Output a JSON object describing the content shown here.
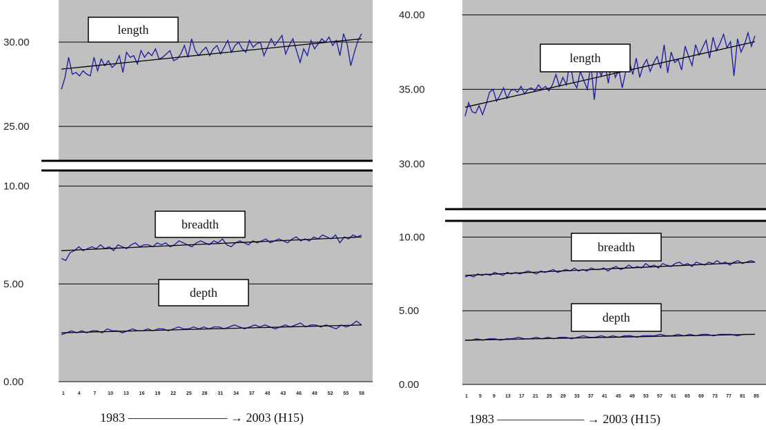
{
  "chart_data": [
    {
      "type": "line",
      "x_ticks": [
        "1",
        "4",
        "7",
        "10",
        "13",
        "16",
        "19",
        "22",
        "25",
        "28",
        "31",
        "34",
        "37",
        "40",
        "43",
        "46",
        "49",
        "52",
        "55",
        "58"
      ],
      "y_ticks": [
        "30.00",
        "25.00",
        "10.00",
        "5.00",
        "0.00"
      ],
      "axis_break": [
        12,
        23
      ],
      "caption": "1983 ———————— → 2003 (H15)",
      "series": [
        {
          "name": "length",
          "color": "#2020a0",
          "trendline": [
            28.4,
            30.2
          ],
          "values": [
            27.2,
            27.9,
            29.1,
            28.1,
            28.2,
            28.0,
            28.3,
            28.1,
            28.0,
            29.1,
            28.3,
            29.0,
            28.6,
            28.9,
            28.5,
            28.7,
            29.2,
            28.2,
            29.4,
            29.1,
            29.2,
            28.7,
            29.5,
            29.1,
            29.4,
            29.2,
            29.6,
            29.0,
            29.1,
            29.3,
            29.5,
            28.9,
            29.0,
            29.3,
            29.8,
            29.1,
            30.2,
            29.5,
            29.2,
            29.5,
            29.7,
            29.2,
            29.6,
            29.8,
            29.3,
            29.7,
            30.1,
            29.4,
            29.8,
            30.0,
            29.6,
            29.4,
            30.1,
            29.7,
            29.9,
            30.0,
            29.2,
            29.7,
            30.2,
            29.8,
            30.1,
            30.4,
            29.3,
            29.8,
            30.2,
            29.5,
            28.8,
            29.6,
            29.2,
            30.1,
            29.6,
            29.9,
            30.2,
            30.0,
            30.3,
            29.8,
            30.1,
            29.2,
            30.5,
            29.9,
            28.6,
            29.4,
            30.1,
            30.5
          ]
        },
        {
          "name": "breadth",
          "color": "#2020a0",
          "trendline": [
            6.7,
            7.4
          ],
          "values": [
            6.3,
            6.2,
            6.6,
            6.7,
            6.9,
            6.7,
            6.8,
            6.9,
            6.8,
            7.0,
            6.8,
            6.9,
            6.7,
            7.0,
            6.9,
            6.8,
            7.0,
            7.1,
            6.9,
            7.0,
            7.0,
            6.9,
            7.1,
            7.0,
            7.1,
            6.9,
            7.0,
            7.2,
            7.1,
            7.0,
            6.9,
            7.1,
            7.2,
            7.1,
            7.0,
            7.2,
            7.1,
            7.3,
            7.0,
            6.9,
            7.1,
            7.2,
            7.1,
            7.0,
            7.2,
            7.1,
            7.2,
            7.3,
            7.1,
            7.2,
            7.3,
            7.2,
            7.1,
            7.3,
            7.4,
            7.2,
            7.3,
            7.2,
            7.4,
            7.3,
            7.5,
            7.4,
            7.3,
            7.5,
            7.1,
            7.4,
            7.3,
            7.5,
            7.4,
            7.5
          ]
        },
        {
          "name": "depth",
          "color": "#2020a0",
          "trendline": [
            2.5,
            2.9
          ],
          "values": [
            2.4,
            2.5,
            2.6,
            2.5,
            2.6,
            2.5,
            2.6,
            2.6,
            2.5,
            2.7,
            2.6,
            2.6,
            2.5,
            2.6,
            2.7,
            2.6,
            2.6,
            2.7,
            2.6,
            2.7,
            2.7,
            2.6,
            2.7,
            2.8,
            2.7,
            2.7,
            2.8,
            2.7,
            2.8,
            2.7,
            2.8,
            2.8,
            2.7,
            2.8,
            2.9,
            2.8,
            2.7,
            2.8,
            2.9,
            2.8,
            2.9,
            2.8,
            2.7,
            2.8,
            2.9,
            2.8,
            2.9,
            3.0,
            2.8,
            2.9,
            2.9,
            2.8,
            2.9,
            2.8,
            2.7,
            2.9,
            2.8,
            2.9,
            3.1,
            2.9
          ]
        }
      ]
    },
    {
      "type": "line",
      "x_ticks": [
        "1",
        "5",
        "9",
        "13",
        "17",
        "21",
        "25",
        "29",
        "33",
        "37",
        "41",
        "45",
        "49",
        "53",
        "57",
        "61",
        "65",
        "69",
        "73",
        "77",
        "81",
        "85"
      ],
      "y_ticks": [
        "40.00",
        "35.00",
        "30.00",
        "10.00",
        "5.00",
        "0.00"
      ],
      "axis_break": [
        12,
        27
      ],
      "caption": "1983 ——————— → 2003 (H15)",
      "series": [
        {
          "name": "length",
          "color": "#2020a0",
          "trendline": [
            33.8,
            38.2
          ],
          "values": [
            33.2,
            34.1,
            33.5,
            33.4,
            33.9,
            33.3,
            34.0,
            34.8,
            35.0,
            34.2,
            34.6,
            35.1,
            34.4,
            34.9,
            35.0,
            34.8,
            35.2,
            34.7,
            35.0,
            35.1,
            34.9,
            35.3,
            35.0,
            35.2,
            34.9,
            35.3,
            36.0,
            35.2,
            35.8,
            35.3,
            36.9,
            35.5,
            35.1,
            36.2,
            35.6,
            35.0,
            36.7,
            34.3,
            36.5,
            35.9,
            36.8,
            35.4,
            37.0,
            35.8,
            36.3,
            35.1,
            36.2,
            36.9,
            36.0,
            37.1,
            35.8,
            36.6,
            37.0,
            36.2,
            36.8,
            37.2,
            36.4,
            38.0,
            36.1,
            37.5,
            36.8,
            37.0,
            36.3,
            37.9,
            37.2,
            36.6,
            38.0,
            37.3,
            37.8,
            38.3,
            37.1,
            38.5,
            37.6,
            38.1,
            38.7,
            37.8,
            38.2,
            35.9,
            38.4,
            37.5,
            38.0,
            38.8,
            37.9,
            38.6
          ]
        },
        {
          "name": "breadth",
          "color": "#2020a0",
          "trendline": [
            7.4,
            8.3
          ],
          "values": [
            7.3,
            7.4,
            7.3,
            7.5,
            7.4,
            7.5,
            7.4,
            7.6,
            7.5,
            7.4,
            7.6,
            7.5,
            7.6,
            7.5,
            7.6,
            7.7,
            7.6,
            7.5,
            7.7,
            7.6,
            7.7,
            7.8,
            7.6,
            7.7,
            7.8,
            7.7,
            7.9,
            7.7,
            7.8,
            7.7,
            7.9,
            7.8,
            7.8,
            7.9,
            7.7,
            7.9,
            8.0,
            7.8,
            7.9,
            8.1,
            7.9,
            8.0,
            7.9,
            8.2,
            8.0,
            8.1,
            7.9,
            8.2,
            8.1,
            8.0,
            8.2,
            8.3,
            8.1,
            8.2,
            8.0,
            8.3,
            8.2,
            8.1,
            8.3,
            8.2,
            8.4,
            8.2,
            8.3,
            8.1,
            8.3,
            8.4,
            8.2,
            8.3,
            8.4,
            8.3
          ]
        },
        {
          "name": "depth",
          "color": "#2020a0",
          "trendline": [
            3.0,
            3.4
          ],
          "values": [
            3.0,
            3.0,
            3.1,
            3.0,
            3.1,
            3.1,
            3.0,
            3.1,
            3.1,
            3.2,
            3.1,
            3.1,
            3.2,
            3.1,
            3.2,
            3.1,
            3.2,
            3.2,
            3.1,
            3.2,
            3.3,
            3.2,
            3.2,
            3.3,
            3.2,
            3.3,
            3.2,
            3.3,
            3.3,
            3.2,
            3.3,
            3.3,
            3.3,
            3.4,
            3.3,
            3.3,
            3.4,
            3.3,
            3.4,
            3.3,
            3.4,
            3.4,
            3.3,
            3.4,
            3.4,
            3.4,
            3.3,
            3.4,
            3.4,
            3.4
          ]
        }
      ]
    }
  ]
}
